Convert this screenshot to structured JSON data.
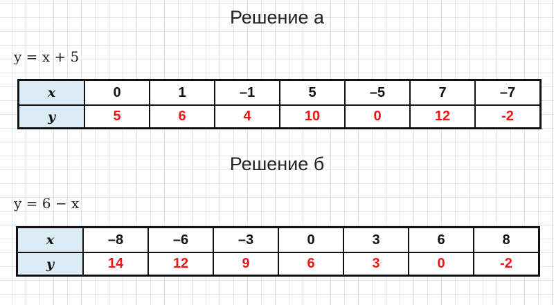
{
  "part_a": {
    "title": "Решение а",
    "formula": "y = x + 5",
    "row_labels": [
      "x",
      "y"
    ],
    "x": [
      "0",
      "1",
      "–1",
      "5",
      "–5",
      "7",
      "–7"
    ],
    "y": [
      "5",
      "6",
      "4",
      "10",
      "0",
      "12",
      "-2"
    ]
  },
  "part_b": {
    "title": "Решение б",
    "formula": "y = 6 − x",
    "row_labels": [
      "x",
      "y"
    ],
    "x": [
      "–8",
      "–6",
      "–3",
      "0",
      "3",
      "6",
      "8"
    ],
    "y": [
      "14",
      "12",
      "9",
      "6",
      "3",
      "0",
      "-2"
    ]
  },
  "colors": {
    "answer": "#f01414",
    "header_cell": "#dcecf7",
    "grid": "#dde6f2"
  }
}
